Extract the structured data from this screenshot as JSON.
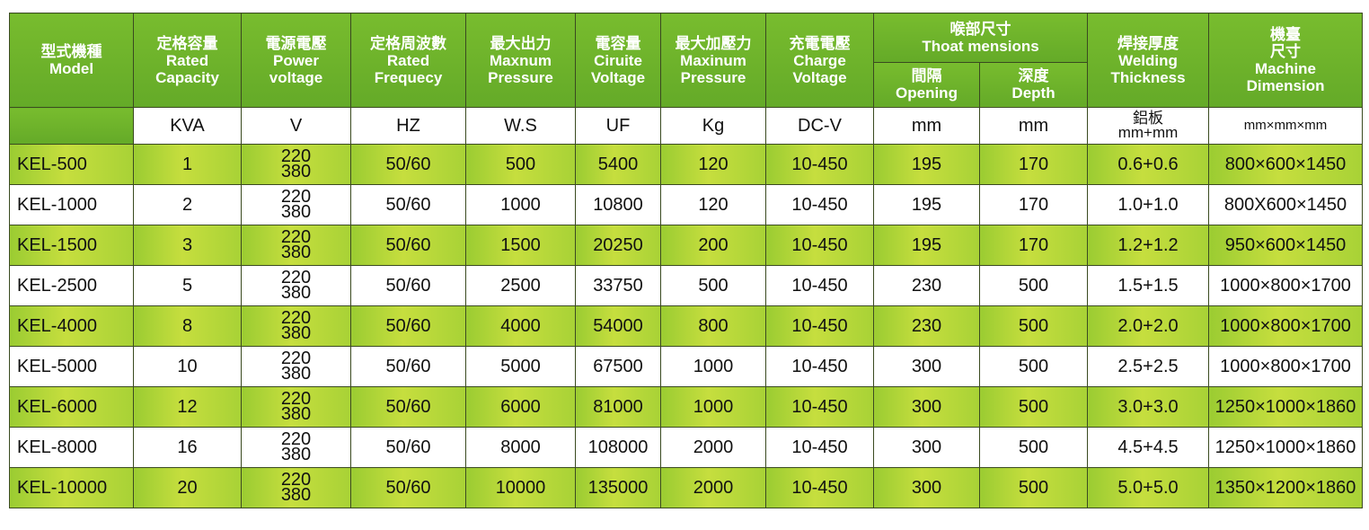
{
  "headers": {
    "model": {
      "zh": "型式機種",
      "en": "Model"
    },
    "capacity": {
      "zh": "定格容量",
      "en1": "Rated",
      "en2": "Capacity"
    },
    "voltage": {
      "zh": "電源電壓",
      "en1": "Power",
      "en2": "voltage"
    },
    "frequency": {
      "zh": "定格周波數",
      "en1": "Rated",
      "en2": "Frequecy"
    },
    "max_output": {
      "zh": "最大出力",
      "en1": "Maxnum",
      "en2": "Pressure"
    },
    "capacitance": {
      "zh": "電容量",
      "en1": "Ciruite",
      "en2": "Voltage"
    },
    "max_pressure": {
      "zh": "最大加壓力",
      "en1": "Maxinum",
      "en2": "Pressure"
    },
    "charge": {
      "zh": "充電電壓",
      "en1": "Charge",
      "en2": "Voltage"
    },
    "throat": {
      "zh": "喉部尺寸",
      "en": "Thoat mensions"
    },
    "opening": {
      "zh": "間隔",
      "en": "Opening"
    },
    "depth": {
      "zh": "深度",
      "en": "Depth"
    },
    "welding": {
      "zh": "焊接厚度",
      "en1": "Welding",
      "en2": "Thickness"
    },
    "dimension": {
      "zh1": "機臺",
      "zh2": "尺寸",
      "en1": "Machine",
      "en2": "Dimension"
    }
  },
  "units": {
    "capacity": "KVA",
    "voltage": "V",
    "frequency": "HZ",
    "max_output": "W.S",
    "capacitance": "UF",
    "max_pressure": "Kg",
    "charge": "DC-V",
    "opening": "mm",
    "depth": "mm",
    "welding_zh": "鋁板",
    "welding": "mm+mm",
    "dimension": "mm×mm×mm"
  },
  "rows": [
    {
      "model": "KEL-500",
      "kva": "1",
      "v1": "220",
      "v2": "380",
      "hz": "50/60",
      "ws": "500",
      "uf": "5400",
      "kg": "120",
      "dcv": "10-450",
      "opening": "195",
      "depth": "170",
      "weld": "0.6+0.6",
      "dim": "800×600×1450"
    },
    {
      "model": "KEL-1000",
      "kva": "2",
      "v1": "220",
      "v2": "380",
      "hz": "50/60",
      "ws": "1000",
      "uf": "10800",
      "kg": "120",
      "dcv": "10-450",
      "opening": "195",
      "depth": "170",
      "weld": "1.0+1.0",
      "dim": "800X600×1450"
    },
    {
      "model": "KEL-1500",
      "kva": "3",
      "v1": "220",
      "v2": "380",
      "hz": "50/60",
      "ws": "1500",
      "uf": "20250",
      "kg": "200",
      "dcv": "10-450",
      "opening": "195",
      "depth": "170",
      "weld": "1.2+1.2",
      "dim": "950×600×1450"
    },
    {
      "model": "KEL-2500",
      "kva": "5",
      "v1": "220",
      "v2": "380",
      "hz": "50/60",
      "ws": "2500",
      "uf": "33750",
      "kg": "500",
      "dcv": "10-450",
      "opening": "230",
      "depth": "500",
      "weld": "1.5+1.5",
      "dim": "1000×800×1700"
    },
    {
      "model": "KEL-4000",
      "kva": "8",
      "v1": "220",
      "v2": "380",
      "hz": "50/60",
      "ws": "4000",
      "uf": "54000",
      "kg": "800",
      "dcv": "10-450",
      "opening": "230",
      "depth": "500",
      "weld": "2.0+2.0",
      "dim": "1000×800×1700"
    },
    {
      "model": "KEL-5000",
      "kva": "10",
      "v1": "220",
      "v2": "380",
      "hz": "50/60",
      "ws": "5000",
      "uf": "67500",
      "kg": "1000",
      "dcv": "10-450",
      "opening": "300",
      "depth": "500",
      "weld": "2.5+2.5",
      "dim": "1000×800×1700"
    },
    {
      "model": "KEL-6000",
      "kva": "12",
      "v1": "220",
      "v2": "380",
      "hz": "50/60",
      "ws": "6000",
      "uf": "81000",
      "kg": "1000",
      "dcv": "10-450",
      "opening": "300",
      "depth": "500",
      "weld": "3.0+3.0",
      "dim": "1250×1000×1860"
    },
    {
      "model": "KEL-8000",
      "kva": "16",
      "v1": "220",
      "v2": "380",
      "hz": "50/60",
      "ws": "8000",
      "uf": "108000",
      "kg": "2000",
      "dcv": "10-450",
      "opening": "300",
      "depth": "500",
      "weld": "4.5+4.5",
      "dim": "1250×1000×1860"
    },
    {
      "model": "KEL-10000",
      "kva": "20",
      "v1": "220",
      "v2": "380",
      "hz": "50/60",
      "ws": "10000",
      "uf": "135000",
      "kg": "2000",
      "dcv": "10-450",
      "opening": "300",
      "depth": "500",
      "weld": "5.0+5.0",
      "dim": "1350×1200×1860"
    }
  ],
  "colors": {
    "header_green": "#6fb52c",
    "row_green": "#b5d83a",
    "row_white": "#ffffff",
    "border": "#3a4a20"
  }
}
